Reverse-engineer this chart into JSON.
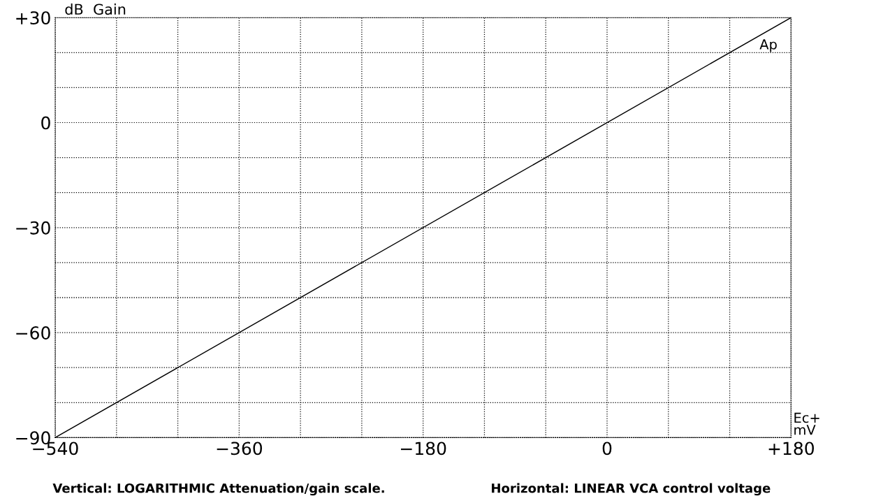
{
  "chart_data": {
    "type": "line",
    "ylabel": "dB  Gain",
    "xlabel": "Ec+\nmV",
    "x": [
      -540,
      180
    ],
    "series": [
      {
        "name": "Ap",
        "color": "#000000",
        "values": [
          -90,
          30
        ]
      }
    ],
    "xlim": [
      -540,
      180
    ],
    "ylim": [
      -90,
      30
    ],
    "xticks": [
      {
        "value": -540,
        "label": "−540"
      },
      {
        "value": -480,
        "label": null
      },
      {
        "value": -420,
        "label": null
      },
      {
        "value": -360,
        "label": "−360"
      },
      {
        "value": -300,
        "label": null
      },
      {
        "value": -240,
        "label": null
      },
      {
        "value": -180,
        "label": "−180"
      },
      {
        "value": -120,
        "label": null
      },
      {
        "value": -60,
        "label": null
      },
      {
        "value": 0,
        "label": "0"
      },
      {
        "value": 60,
        "label": null
      },
      {
        "value": 120,
        "label": null
      },
      {
        "value": 180,
        "label": "+180"
      }
    ],
    "yticks": [
      {
        "value": -90,
        "label": "−90"
      },
      {
        "value": -80,
        "label": null
      },
      {
        "value": -70,
        "label": null
      },
      {
        "value": -60,
        "label": "−60"
      },
      {
        "value": -50,
        "label": null
      },
      {
        "value": -40,
        "label": null
      },
      {
        "value": -30,
        "label": "−30"
      },
      {
        "value": -20,
        "label": null
      },
      {
        "value": -10,
        "label": null
      },
      {
        "value": 0,
        "label": "0"
      },
      {
        "value": 10,
        "label": null
      },
      {
        "value": 20,
        "label": null
      },
      {
        "value": 30,
        "label": "+30"
      }
    ],
    "grid": true,
    "marker": "none",
    "line_style": "solid",
    "legend": false,
    "annotations": [
      "Vertical: LOGARITHMIC Attenuation/gain scale.",
      "Horizontal: LINEAR VCA control voltage"
    ]
  }
}
